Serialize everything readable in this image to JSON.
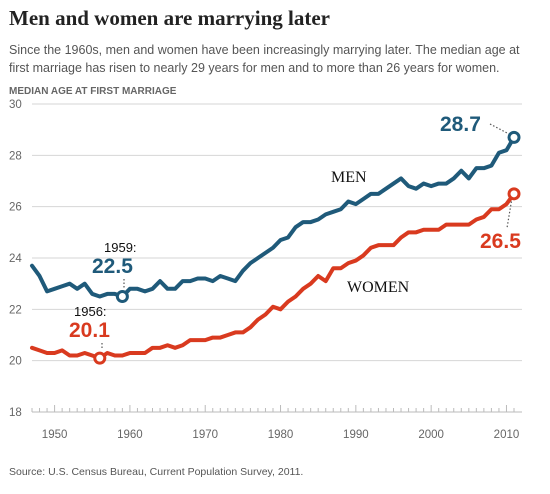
{
  "header": {
    "title": "Men and women are marrying later",
    "subtitle": "Since the 1960s, men and women have been increasingly marrying later. The median age at first marriage has risen to nearly 29 years for men and to more than 26 years for women."
  },
  "footer": {
    "source": "Source: U.S. Census Bureau, Current Population Survey, 2011."
  },
  "colors": {
    "men": "#1f5a7a",
    "women": "#d93a1f",
    "grid": "#d6d6d6",
    "axis_text": "#666666"
  },
  "chart_data": {
    "type": "line",
    "title": "Men and women are marrying later",
    "ylabel": "MEDIAN AGE AT FIRST MARRIAGE",
    "xlabel": "",
    "xlim": [
      1947,
      2011
    ],
    "ylim": [
      18,
      30
    ],
    "x_ticks": [
      1950,
      1960,
      1970,
      1980,
      1990,
      2000,
      2010
    ],
    "y_ticks": [
      18,
      20,
      22,
      24,
      26,
      28,
      30
    ],
    "grid": true,
    "x": [
      1947,
      1948,
      1949,
      1950,
      1951,
      1952,
      1953,
      1954,
      1955,
      1956,
      1957,
      1958,
      1959,
      1960,
      1961,
      1962,
      1963,
      1964,
      1965,
      1966,
      1967,
      1968,
      1969,
      1970,
      1971,
      1972,
      1973,
      1974,
      1975,
      1976,
      1977,
      1978,
      1979,
      1980,
      1981,
      1982,
      1983,
      1984,
      1985,
      1986,
      1987,
      1988,
      1989,
      1990,
      1991,
      1992,
      1993,
      1994,
      1995,
      1996,
      1997,
      1998,
      1999,
      2000,
      2001,
      2002,
      2003,
      2004,
      2005,
      2006,
      2007,
      2008,
      2009,
      2010,
      2011
    ],
    "series": [
      {
        "name": "MEN",
        "values": [
          23.7,
          23.3,
          22.7,
          22.8,
          22.9,
          23.0,
          22.8,
          23.0,
          22.6,
          22.5,
          22.6,
          22.6,
          22.5,
          22.8,
          22.8,
          22.7,
          22.8,
          23.1,
          22.8,
          22.8,
          23.1,
          23.1,
          23.2,
          23.2,
          23.1,
          23.3,
          23.2,
          23.1,
          23.5,
          23.8,
          24.0,
          24.2,
          24.4,
          24.7,
          24.8,
          25.2,
          25.4,
          25.4,
          25.5,
          25.7,
          25.8,
          25.9,
          26.2,
          26.1,
          26.3,
          26.5,
          26.5,
          26.7,
          26.9,
          27.1,
          26.8,
          26.7,
          26.9,
          26.8,
          26.9,
          26.9,
          27.1,
          27.4,
          27.1,
          27.5,
          27.5,
          27.6,
          28.1,
          28.2,
          28.7
        ]
      },
      {
        "name": "WOMEN",
        "values": [
          20.5,
          20.4,
          20.3,
          20.3,
          20.4,
          20.2,
          20.2,
          20.3,
          20.2,
          20.1,
          20.3,
          20.2,
          20.2,
          20.3,
          20.3,
          20.3,
          20.5,
          20.5,
          20.6,
          20.5,
          20.6,
          20.8,
          20.8,
          20.8,
          20.9,
          20.9,
          21.0,
          21.1,
          21.1,
          21.3,
          21.6,
          21.8,
          22.1,
          22.0,
          22.3,
          22.5,
          22.8,
          23.0,
          23.3,
          23.1,
          23.6,
          23.6,
          23.8,
          23.9,
          24.1,
          24.4,
          24.5,
          24.5,
          24.5,
          24.8,
          25.0,
          25.0,
          25.1,
          25.1,
          25.1,
          25.3,
          25.3,
          25.3,
          25.3,
          25.5,
          25.6,
          25.9,
          25.9,
          26.1,
          26.5
        ]
      }
    ],
    "annotations": [
      {
        "series": "MEN",
        "year": 1959,
        "value": 22.5,
        "year_text": "1959:",
        "value_text": "22.5"
      },
      {
        "series": "WOMEN",
        "year": 1956,
        "value": 20.1,
        "year_text": "1956:",
        "value_text": "20.1"
      },
      {
        "series": "MEN",
        "year": 2011,
        "value": 28.7,
        "value_text": "28.7"
      },
      {
        "series": "WOMEN",
        "year": 2011,
        "value": 26.5,
        "value_text": "26.5"
      }
    ],
    "series_labels": [
      {
        "series": "MEN",
        "text": "MEN"
      },
      {
        "series": "WOMEN",
        "text": "WOMEN"
      }
    ]
  }
}
